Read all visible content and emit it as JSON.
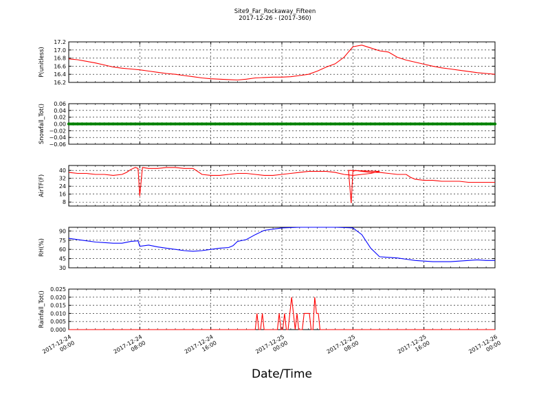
{
  "figure": {
    "title_line1": "Site9_Far_Rockaway_Fifteen",
    "title_line2": "2017-12-26 - (2017-360)",
    "xlabel": "Date/Time"
  },
  "chart_data": {
    "type": "line",
    "x_tick_labels": [
      [
        "2017-12-24",
        "00:00"
      ],
      [
        "2017-12-24",
        "08:00"
      ],
      [
        "2017-12-24",
        "16:00"
      ],
      [
        "2017-12-25",
        "00:00"
      ],
      [
        "2017-12-25",
        "08:00"
      ],
      [
        "2017-12-25",
        "16:00"
      ],
      [
        "2017-12-26",
        "00:00"
      ]
    ],
    "x_range_hours": [
      0,
      48
    ],
    "grid": true,
    "panels": [
      {
        "ylabel": "P(unitless)",
        "color": "#ff0000",
        "ylim": [
          16.2,
          17.2
        ],
        "yticks": [
          "16.2",
          "16.4",
          "16.6",
          "16.8",
          "17.0",
          "17.2"
        ],
        "series": [
          {
            "x": [
              0,
              1,
              2,
              3,
              4,
              5,
              6,
              7,
              8,
              9,
              10,
              11,
              12,
              13,
              14,
              15,
              16,
              17,
              18,
              19,
              20,
              21,
              22,
              23,
              24,
              25,
              26,
              27,
              28,
              29,
              30,
              31,
              32,
              33,
              34,
              35,
              36,
              37,
              38,
              39,
              40,
              41,
              42,
              43,
              44,
              45,
              46,
              47,
              48
            ],
            "values": [
              16.78,
              16.76,
              16.72,
              16.68,
              16.63,
              16.58,
              16.55,
              16.53,
              16.51,
              16.48,
              16.45,
              16.42,
              16.4,
              16.37,
              16.34,
              16.31,
              16.29,
              16.28,
              16.27,
              16.26,
              16.28,
              16.31,
              16.32,
              16.33,
              16.33,
              16.34,
              16.37,
              16.4,
              16.48,
              16.58,
              16.66,
              16.82,
              17.08,
              17.12,
              17.05,
              16.98,
              16.95,
              16.82,
              16.75,
              16.7,
              16.65,
              16.6,
              16.56,
              16.53,
              16.5,
              16.47,
              16.44,
              16.42,
              16.4
            ]
          }
        ]
      },
      {
        "ylabel": "Snowfall_Tot()",
        "color": "#008000",
        "ylim": [
          -0.06,
          0.06
        ],
        "yticks": [
          "−0.06",
          "−0.04",
          "−0.02",
          "0.00",
          "0.02",
          "0.04",
          "0.06"
        ],
        "series": [
          {
            "x": [
              0,
              48
            ],
            "values": [
              0.0,
              0.0
            ]
          }
        ]
      },
      {
        "ylabel": "AirTF(F)",
        "color": "#ff0000",
        "ylim": [
          4,
          45
        ],
        "yticks": [
          "8",
          "16",
          "24",
          "32",
          "40"
        ],
        "series": [
          {
            "x": [
              0,
              1,
              2,
              3,
              4,
              5,
              6,
              6.5,
              7,
              7.5,
              7.8,
              8,
              8.3,
              9,
              10,
              11,
              12,
              13,
              14,
              14.5,
              15,
              16,
              17,
              18,
              19,
              20,
              21,
              22,
              23,
              24,
              25,
              26,
              27,
              28,
              29,
              30,
              31,
              32,
              33,
              34,
              35,
              31.5,
              31.8,
              32,
              32.3,
              33,
              34,
              35,
              36,
              37,
              38,
              38.5,
              39,
              40,
              41,
              42,
              43,
              44,
              45,
              46,
              47,
              48
            ],
            "values": [
              38,
              37,
              37,
              36,
              36,
              35,
              36,
              38,
              41,
              43,
              42,
              14,
              43,
              42,
              42,
              43,
              43,
              42,
              42,
              39,
              36,
              35,
              35,
              36,
              37,
              37,
              36,
              35,
              35,
              36,
              37,
              38,
              39,
              39,
              39,
              38,
              36,
              35,
              36,
              37,
              39,
              40,
              7,
              39,
              40,
              39,
              38,
              38,
              37,
              36,
              36,
              33,
              31,
              30,
              30,
              29,
              29,
              29,
              28,
              28,
              28,
              28
            ],
            "order": "by_sequence"
          }
        ]
      },
      {
        "ylabel": "RH(%)",
        "color": "#0000ff",
        "ylim": [
          30,
          96
        ],
        "yticks": [
          "30",
          "45",
          "60",
          "75",
          "90"
        ],
        "series": [
          {
            "x": [
              0,
              1,
              2,
              3,
              4,
              5,
              6,
              7,
              7.8,
              8,
              9,
              10,
              11,
              12,
              13,
              14,
              15,
              16,
              17,
              18,
              18.5,
              19,
              20,
              21,
              22,
              24,
              26,
              28,
              30,
              32,
              33,
              34,
              35,
              36,
              37,
              38,
              39,
              40,
              41,
              42,
              43,
              44,
              45,
              46,
              47,
              48
            ],
            "values": [
              78,
              76,
              74,
              72,
              71,
              70,
              70,
              73,
              74,
              65,
              67,
              64,
              62,
              60,
              58,
              57,
              58,
              60,
              62,
              63,
              66,
              73,
              76,
              84,
              91,
              95,
              96,
              96,
              96,
              95,
              84,
              62,
              48,
              47,
              46,
              44,
              42,
              41,
              40,
              40,
              40,
              41,
              42,
              43,
              42,
              42
            ]
          }
        ]
      },
      {
        "ylabel": "Rainfall_Tot()",
        "color": "#ff0000",
        "ylim": [
          0,
          0.025
        ],
        "yticks": [
          "0.000",
          "0.005",
          "0.010",
          "0.015",
          "0.020",
          "0.025"
        ],
        "series": [
          {
            "x": [
              0,
              21,
              21.2,
              21.4,
              21.6,
              21.8,
              22,
              23.5,
              23.7,
              23.9,
              24.1,
              24.3,
              24.5,
              24.7,
              25.1,
              25.3,
              25.5,
              25.7,
              25.9,
              26.1,
              26.3,
              26.5,
              26.7,
              26.9,
              27.1,
              27.3,
              27.5,
              27.7,
              27.9,
              28.1,
              28.3,
              28.5,
              28.7,
              28.9,
              29.1,
              48
            ],
            "values": [
              0,
              0,
              0.01,
              0,
              0,
              0.01,
              0,
              0,
              0.01,
              0,
              0,
              0.01,
              0,
              0,
              0.02,
              0.01,
              0,
              0.01,
              0,
              0,
              0,
              0.01,
              0.01,
              0.01,
              0.01,
              0,
              0,
              0.02,
              0.01,
              0.01,
              0,
              0,
              0,
              0,
              0,
              0
            ]
          }
        ]
      }
    ]
  }
}
